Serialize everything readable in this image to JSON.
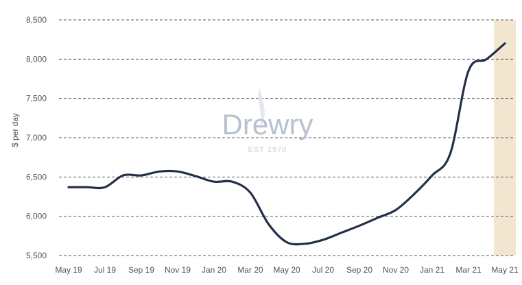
{
  "chart_data": {
    "type": "line",
    "title": "",
    "xlabel": "",
    "ylabel": "$ per day",
    "ylim": [
      5500,
      8500
    ],
    "yticks": [
      "5,500",
      "6,000",
      "6,500",
      "7,000",
      "7,500",
      "8,000",
      "8,500"
    ],
    "ytick_values": [
      5500,
      6000,
      6500,
      7000,
      7500,
      8000,
      8500
    ],
    "xtick_labels": [
      "May 19",
      "Jul 19",
      "Sep 19",
      "Nov 19",
      "Jan 20",
      "Mar 20",
      "May 20",
      "Jul 20",
      "Sep 20",
      "Nov 20",
      "Jan 21",
      "Mar 21",
      "May 21"
    ],
    "grid": "horizontal-dashed",
    "highlight_band": {
      "category": "May 21",
      "color": "#f3e6d1"
    },
    "series": [
      {
        "color": "#24304a",
        "x": [
          "May 19",
          "Jun 19",
          "Jul 19",
          "Aug 19",
          "Sep 19",
          "Oct 19",
          "Nov 19",
          "Dec 19",
          "Jan 20",
          "Feb 20",
          "Mar 20",
          "Apr 20",
          "May 20",
          "Jun 20",
          "Jul 20",
          "Aug 20",
          "Sep 20",
          "Oct 20",
          "Nov 20",
          "Dec 20",
          "Jan 21",
          "Feb 21",
          "Mar 21",
          "Apr 21",
          "May 21"
        ],
        "values": [
          6370,
          6370,
          6370,
          6520,
          6520,
          6570,
          6570,
          6510,
          6440,
          6440,
          6300,
          5900,
          5670,
          5650,
          5700,
          5790,
          5880,
          5980,
          6080,
          6280,
          6520,
          6800,
          7850,
          8000,
          8200
        ]
      }
    ]
  },
  "watermark": {
    "brand": "Drewry",
    "tagline": "EST 1970"
  }
}
